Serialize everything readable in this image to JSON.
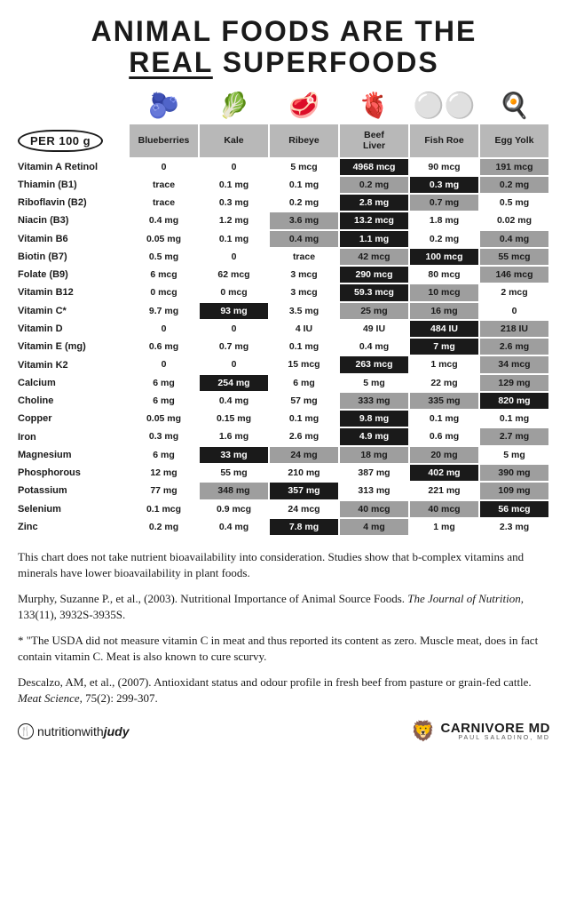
{
  "title_line1": "ANIMAL FOODS ARE THE",
  "title_real": "REAL",
  "title_line2b": " SUPERFOODS",
  "per_label": "PER 100 g",
  "columns": [
    {
      "label": "Blueberries",
      "icon": "🫐"
    },
    {
      "label": "Kale",
      "icon": "🥬"
    },
    {
      "label": "Ribeye",
      "icon": "🥩"
    },
    {
      "label": "Beef\nLiver",
      "icon": "🫀"
    },
    {
      "label": "Fish Roe",
      "icon": "⚪⚪"
    },
    {
      "label": "Egg Yolk",
      "icon": "🍳"
    }
  ],
  "rows": [
    {
      "label": "Vitamin A Retinol",
      "cells": [
        {
          "v": "0",
          "h": "white"
        },
        {
          "v": "0",
          "h": "white"
        },
        {
          "v": "5 mcg",
          "h": "white"
        },
        {
          "v": "4968 mcg",
          "h": "black"
        },
        {
          "v": "90 mcg",
          "h": "white"
        },
        {
          "v": "191 mcg",
          "h": "gray"
        }
      ]
    },
    {
      "label": "Thiamin (B1)",
      "cells": [
        {
          "v": "trace",
          "h": "white"
        },
        {
          "v": "0.1 mg",
          "h": "white"
        },
        {
          "v": "0.1 mg",
          "h": "white"
        },
        {
          "v": "0.2 mg",
          "h": "gray"
        },
        {
          "v": "0.3 mg",
          "h": "black"
        },
        {
          "v": "0.2 mg",
          "h": "gray"
        }
      ]
    },
    {
      "label": "Riboflavin (B2)",
      "cells": [
        {
          "v": "trace",
          "h": "white"
        },
        {
          "v": "0.3 mg",
          "h": "white"
        },
        {
          "v": "0.2 mg",
          "h": "white"
        },
        {
          "v": "2.8 mg",
          "h": "black"
        },
        {
          "v": "0.7 mg",
          "h": "gray"
        },
        {
          "v": "0.5 mg",
          "h": "white"
        }
      ]
    },
    {
      "label": "Niacin (B3)",
      "cells": [
        {
          "v": "0.4 mg",
          "h": "white"
        },
        {
          "v": "1.2 mg",
          "h": "white"
        },
        {
          "v": "3.6 mg",
          "h": "gray"
        },
        {
          "v": "13.2 mcg",
          "h": "black"
        },
        {
          "v": "1.8 mg",
          "h": "white"
        },
        {
          "v": "0.02 mg",
          "h": "white"
        }
      ]
    },
    {
      "label": "Vitamin B6",
      "cells": [
        {
          "v": "0.05 mg",
          "h": "white"
        },
        {
          "v": "0.1 mg",
          "h": "white"
        },
        {
          "v": "0.4 mg",
          "h": "gray"
        },
        {
          "v": "1.1 mg",
          "h": "black"
        },
        {
          "v": "0.2 mg",
          "h": "white"
        },
        {
          "v": "0.4 mg",
          "h": "gray"
        }
      ]
    },
    {
      "label": "Biotin (B7)",
      "cells": [
        {
          "v": "0.5 mg",
          "h": "white"
        },
        {
          "v": "0",
          "h": "white"
        },
        {
          "v": "trace",
          "h": "white"
        },
        {
          "v": "42 mcg",
          "h": "gray"
        },
        {
          "v": "100 mcg",
          "h": "black"
        },
        {
          "v": "55 mcg",
          "h": "gray"
        }
      ]
    },
    {
      "label": "Folate (B9)",
      "cells": [
        {
          "v": "6 mcg",
          "h": "white"
        },
        {
          "v": "62 mcg",
          "h": "white"
        },
        {
          "v": "3 mcg",
          "h": "white"
        },
        {
          "v": "290 mcg",
          "h": "black"
        },
        {
          "v": "80 mcg",
          "h": "white"
        },
        {
          "v": "146 mcg",
          "h": "gray"
        }
      ]
    },
    {
      "label": "Vitamin B12",
      "cells": [
        {
          "v": "0 mcg",
          "h": "white"
        },
        {
          "v": "0 mcg",
          "h": "white"
        },
        {
          "v": "3 mcg",
          "h": "white"
        },
        {
          "v": "59.3 mcg",
          "h": "black"
        },
        {
          "v": "10 mcg",
          "h": "gray"
        },
        {
          "v": "2 mcg",
          "h": "white"
        }
      ]
    },
    {
      "label": "Vitamin C*",
      "cells": [
        {
          "v": "9.7 mg",
          "h": "white"
        },
        {
          "v": "93 mg",
          "h": "black"
        },
        {
          "v": "3.5 mg",
          "h": "white"
        },
        {
          "v": "25 mg",
          "h": "gray"
        },
        {
          "v": "16 mg",
          "h": "gray"
        },
        {
          "v": "0",
          "h": "white"
        }
      ]
    },
    {
      "label": "Vitamin D",
      "cells": [
        {
          "v": "0",
          "h": "white"
        },
        {
          "v": "0",
          "h": "white"
        },
        {
          "v": "4 IU",
          "h": "white"
        },
        {
          "v": "49 IU",
          "h": "white"
        },
        {
          "v": "484 IU",
          "h": "black"
        },
        {
          "v": "218 IU",
          "h": "gray"
        }
      ]
    },
    {
      "label": "Vitamin E (mg)",
      "cells": [
        {
          "v": "0.6 mg",
          "h": "white"
        },
        {
          "v": "0.7 mg",
          "h": "white"
        },
        {
          "v": "0.1 mg",
          "h": "white"
        },
        {
          "v": "0.4 mg",
          "h": "white"
        },
        {
          "v": "7 mg",
          "h": "black"
        },
        {
          "v": "2.6 mg",
          "h": "gray"
        }
      ]
    },
    {
      "label": "Vitamin K2",
      "cells": [
        {
          "v": "0",
          "h": "white"
        },
        {
          "v": "0",
          "h": "white"
        },
        {
          "v": "15 mcg",
          "h": "white"
        },
        {
          "v": "263 mcg",
          "h": "black"
        },
        {
          "v": "1 mcg",
          "h": "white"
        },
        {
          "v": "34 mcg",
          "h": "gray"
        }
      ]
    },
    {
      "label": "Calcium",
      "cells": [
        {
          "v": "6 mg",
          "h": "white"
        },
        {
          "v": "254 mg",
          "h": "black"
        },
        {
          "v": "6 mg",
          "h": "white"
        },
        {
          "v": "5 mg",
          "h": "white"
        },
        {
          "v": "22 mg",
          "h": "white"
        },
        {
          "v": "129 mg",
          "h": "gray"
        }
      ]
    },
    {
      "label": "Choline",
      "cells": [
        {
          "v": "6 mg",
          "h": "white"
        },
        {
          "v": "0.4 mg",
          "h": "white"
        },
        {
          "v": "57 mg",
          "h": "white"
        },
        {
          "v": "333 mg",
          "h": "gray"
        },
        {
          "v": "335 mg",
          "h": "gray"
        },
        {
          "v": "820 mg",
          "h": "black"
        }
      ]
    },
    {
      "label": "Copper",
      "cells": [
        {
          "v": "0.05 mg",
          "h": "white"
        },
        {
          "v": "0.15 mg",
          "h": "white"
        },
        {
          "v": "0.1 mg",
          "h": "white"
        },
        {
          "v": "9.8 mg",
          "h": "black"
        },
        {
          "v": "0.1 mg",
          "h": "white"
        },
        {
          "v": "0.1 mg",
          "h": "white"
        }
      ]
    },
    {
      "label": "Iron",
      "cells": [
        {
          "v": "0.3 mg",
          "h": "white"
        },
        {
          "v": "1.6 mg",
          "h": "white"
        },
        {
          "v": "2.6 mg",
          "h": "white"
        },
        {
          "v": "4.9 mg",
          "h": "black"
        },
        {
          "v": "0.6 mg",
          "h": "white"
        },
        {
          "v": "2.7 mg",
          "h": "gray"
        }
      ]
    },
    {
      "label": "Magnesium",
      "cells": [
        {
          "v": "6 mg",
          "h": "white"
        },
        {
          "v": "33 mg",
          "h": "black"
        },
        {
          "v": "24 mg",
          "h": "gray"
        },
        {
          "v": "18 mg",
          "h": "gray"
        },
        {
          "v": "20 mg",
          "h": "gray"
        },
        {
          "v": "5 mg",
          "h": "white"
        }
      ]
    },
    {
      "label": "Phosphorous",
      "cells": [
        {
          "v": "12 mg",
          "h": "white"
        },
        {
          "v": "55 mg",
          "h": "white"
        },
        {
          "v": "210 mg",
          "h": "white"
        },
        {
          "v": "387 mg",
          "h": "white"
        },
        {
          "v": "402 mg",
          "h": "black"
        },
        {
          "v": "390 mg",
          "h": "gray"
        }
      ]
    },
    {
      "label": "Potassium",
      "cells": [
        {
          "v": "77 mg",
          "h": "white"
        },
        {
          "v": "348 mg",
          "h": "gray"
        },
        {
          "v": "357 mg",
          "h": "black"
        },
        {
          "v": "313 mg",
          "h": "white"
        },
        {
          "v": "221 mg",
          "h": "white"
        },
        {
          "v": "109 mg",
          "h": "gray"
        }
      ]
    },
    {
      "label": "Selenium",
      "cells": [
        {
          "v": "0.1 mcg",
          "h": "white"
        },
        {
          "v": "0.9 mcg",
          "h": "white"
        },
        {
          "v": "24 mcg",
          "h": "white"
        },
        {
          "v": "40 mcg",
          "h": "gray"
        },
        {
          "v": "40 mcg",
          "h": "gray"
        },
        {
          "v": "56 mcg",
          "h": "black"
        }
      ]
    },
    {
      "label": "Zinc",
      "cells": [
        {
          "v": "0.2 mg",
          "h": "white"
        },
        {
          "v": "0.4 mg",
          "h": "white"
        },
        {
          "v": "7.8 mg",
          "h": "black"
        },
        {
          "v": "4 mg",
          "h": "gray"
        },
        {
          "v": "1 mg",
          "h": "white"
        },
        {
          "v": "2.3 mg",
          "h": "white"
        }
      ]
    }
  ],
  "notes": {
    "p1": "This chart does not take nutrient bioavailability into consideration. Studies show that b-complex vitamins and minerals have lower bioavailability in plant foods.",
    "p2a": "Murphy, Suzanne P., et al., (2003). Nutritional Importance of Animal Source Foods. ",
    "p2i": "The Journal of Nutrition,",
    "p2b": " 133(11), 3932S-3935S.",
    "p3": "* \"The USDA did not measure vitamin C in meat and thus reported its content as zero. Muscle meat, does in fact contain vitamin C. Meat is also known to cure scurvy.",
    "p4a": "Descalzo, AM, et al., (2007). Antioxidant status and odour profile in fresh beef from pasture or grain-fed cattle. ",
    "p4i": "Meat Science,",
    "p4b": " 75(2): 299-307."
  },
  "footer": {
    "left_nw": "nutritionwith",
    "left_judy": "judy",
    "right_brand": "CARNIVORE MD",
    "right_sub": "PAUL SALADINO, MD"
  }
}
